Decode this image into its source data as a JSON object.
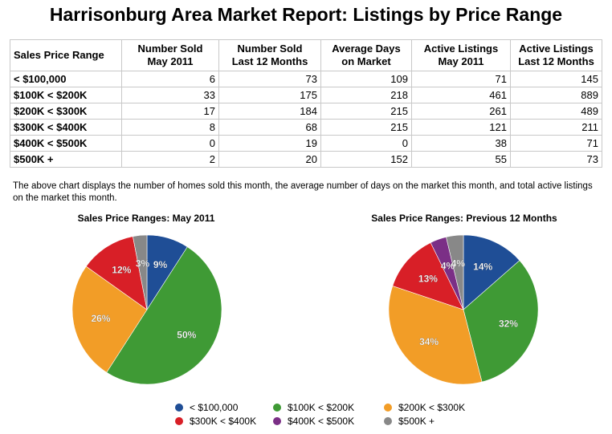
{
  "title": "Harrisonburg Area Market Report: Listings by Price Range",
  "table": {
    "headers": [
      [
        "Sales Price Range"
      ],
      [
        "Number Sold",
        "May 2011"
      ],
      [
        "Number Sold",
        "Last 12 Months"
      ],
      [
        "Average Days",
        "on Market"
      ],
      [
        "Active Listings",
        "May 2011"
      ],
      [
        "Active Listings",
        "Last 12 Months"
      ]
    ],
    "rows": [
      [
        "< $100,000",
        "6",
        "73",
        "109",
        "71",
        "145"
      ],
      [
        "$100K < $200K",
        "33",
        "175",
        "218",
        "461",
        "889"
      ],
      [
        "$200K < $300K",
        "17",
        "184",
        "215",
        "261",
        "489"
      ],
      [
        "$300K < $400K",
        "8",
        "68",
        "215",
        "121",
        "211"
      ],
      [
        "$400K < $500K",
        "0",
        "19",
        "0",
        "38",
        "71"
      ],
      [
        "$500K +",
        "2",
        "20",
        "152",
        "55",
        "73"
      ]
    ]
  },
  "description": "The above chart displays the number of homes sold this month, the average number of days on the market this month, and total active listings on the market this month.",
  "legend": [
    {
      "label": "< $100,000",
      "color": "#1f4e96"
    },
    {
      "label": "$100K < $200K",
      "color": "#3f9a35"
    },
    {
      "label": "$200K < $300K",
      "color": "#f29d27"
    },
    {
      "label": "$300K < $400K",
      "color": "#d81f27"
    },
    {
      "label": "$400K < $500K",
      "color": "#7b2f86"
    },
    {
      "label": "$500K +",
      "color": "#888888"
    }
  ],
  "chart_data": [
    {
      "type": "pie",
      "title": "Sales Price Ranges: May 2011",
      "categories": [
        "< $100,000",
        "$100K < $200K",
        "$200K < $300K",
        "$300K < $400K",
        "$400K < $500K",
        "$500K +"
      ],
      "values": [
        6,
        33,
        17,
        8,
        0,
        2
      ],
      "labels": [
        "9%",
        "50%",
        "26%",
        "12%",
        "",
        "3%"
      ],
      "colors": [
        "#1f4e96",
        "#3f9a35",
        "#f29d27",
        "#d81f27",
        "#7b2f86",
        "#888888"
      ],
      "legend": "bottom"
    },
    {
      "type": "pie",
      "title": "Sales Price Ranges: Previous 12 Months",
      "categories": [
        "< $100,000",
        "$100K < $200K",
        "$200K < $300K",
        "$300K < $400K",
        "$400K < $500K",
        "$500K +"
      ],
      "values": [
        73,
        175,
        184,
        68,
        19,
        20
      ],
      "labels": [
        "14%",
        "32%",
        "34%",
        "13%",
        "4%",
        "4%"
      ],
      "colors": [
        "#1f4e96",
        "#3f9a35",
        "#f29d27",
        "#d81f27",
        "#7b2f86",
        "#888888"
      ],
      "legend": "bottom"
    }
  ]
}
